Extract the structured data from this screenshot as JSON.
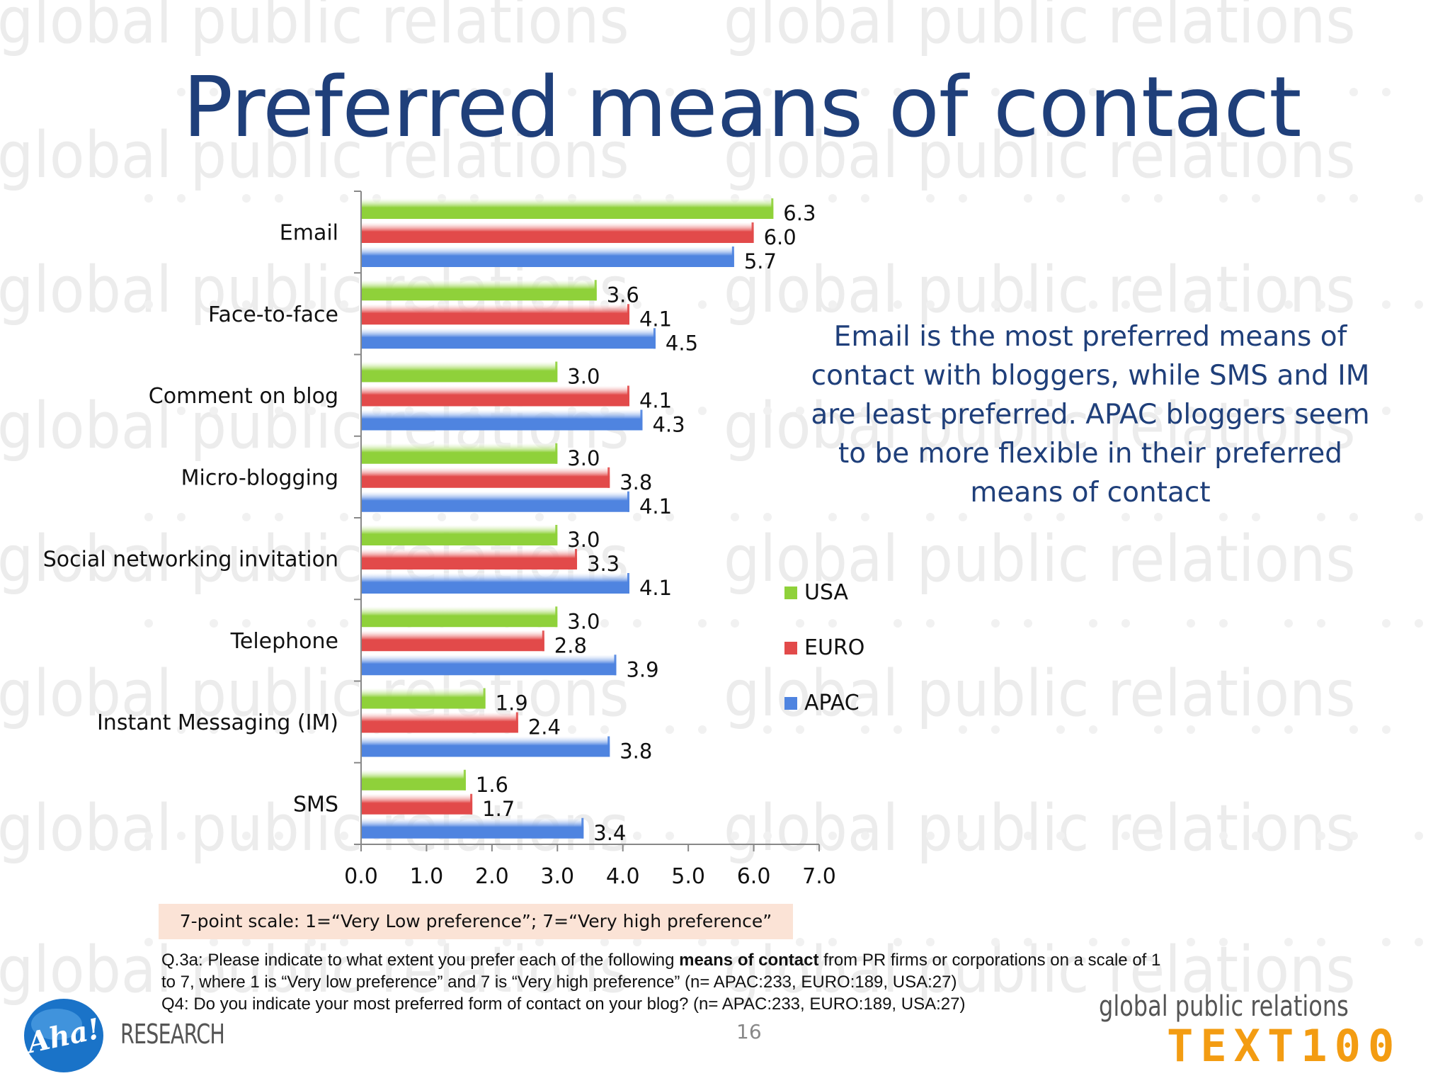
{
  "title": "Preferred means of contact",
  "chart_data": {
    "type": "bar",
    "orientation": "horizontal",
    "categories": [
      "Email",
      "Face-to-face",
      "Comment on blog",
      "Micro-blogging",
      "Social networking invitation",
      "Telephone",
      "Instant Messaging (IM)",
      "SMS"
    ],
    "series": [
      {
        "name": "USA",
        "color": "#8fd13a",
        "values": [
          6.3,
          3.6,
          3.0,
          3.0,
          3.0,
          3.0,
          1.9,
          1.6
        ]
      },
      {
        "name": "EURO",
        "color": "#e24a4a",
        "values": [
          6.0,
          4.1,
          4.1,
          3.8,
          3.3,
          2.8,
          2.4,
          1.7
        ]
      },
      {
        "name": "APAC",
        "color": "#4f84e0",
        "values": [
          5.7,
          4.5,
          4.3,
          4.1,
          4.1,
          3.9,
          3.8,
          3.4
        ]
      }
    ],
    "value_labels": {
      "USA": [
        "6.3",
        "3.6",
        "3.0",
        "3.0",
        "3.0",
        "3.0",
        "1.9",
        "1.6"
      ],
      "EURO": [
        "6.0",
        "4.1",
        "4.1",
        "3.8",
        "3.3",
        "2.8",
        "2.4",
        "1.7"
      ],
      "APAC": [
        "5.7",
        "4.5",
        "4.3",
        "4.1",
        "4.1",
        "3.9",
        "3.8",
        "3.4"
      ]
    },
    "xlim": [
      0,
      7
    ],
    "xticks": [
      "0.0",
      "1.0",
      "2.0",
      "3.0",
      "4.0",
      "5.0",
      "6.0",
      "7.0"
    ],
    "legend": [
      "USA",
      "EURO",
      "APAC"
    ],
    "legend_position": "right",
    "grid": false
  },
  "callout": "Email is the most preferred means of contact with bloggers, while SMS and IM are least preferred. APAC bloggers seem to be more flexible in their preferred means of contact",
  "scale_note": "7-point scale: 1=“Very Low preference”; 7=“Very high preference”",
  "footnote": {
    "q3a_pre": "Q.3a: Please indicate to what extent you prefer each of the following ",
    "q3a_bold": "means of contact",
    "q3a_post": " from PR firms or corporations on a scale of 1 to 7, where 1 is “Very low preference” and 7 is “Very high preference” (n= APAC:233, EURO:189, USA:27)",
    "q4": "Q4: Do you indicate your most preferred form of contact on your blog? (n= APAC:233, EURO:189, USA:27)"
  },
  "page_number": "16",
  "watermark_text": "global public relations",
  "logos": {
    "aha": "Aha!",
    "research": "RESEARCH",
    "gpr": "global public relations",
    "text100": "TEXT100"
  }
}
